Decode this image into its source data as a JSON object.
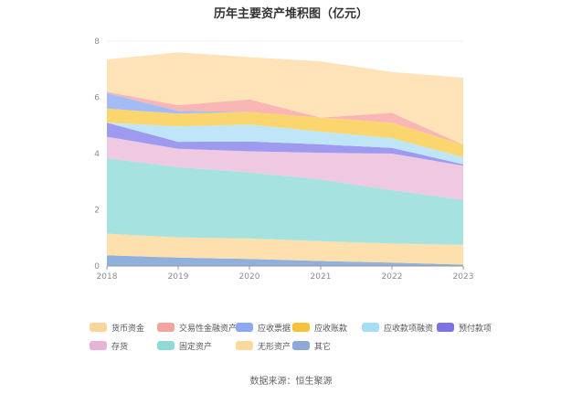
{
  "chart_data": {
    "type": "area",
    "stacked": true,
    "title": "历年主要资产堆积图（亿元）",
    "x": [
      "2018",
      "2019",
      "2020",
      "2021",
      "2022",
      "2023"
    ],
    "ylim": [
      0,
      8
    ],
    "yticks": [
      0,
      2,
      4,
      6,
      8
    ],
    "grid": true,
    "legend_position": "bottom",
    "series": [
      {
        "name": "其它",
        "color": "#8fb0dc",
        "values": [
          0.38,
          0.3,
          0.25,
          0.18,
          0.12,
          0.05
        ]
      },
      {
        "name": "无形资产",
        "color": "#fde0ad",
        "values": [
          0.77,
          0.72,
          0.73,
          0.7,
          0.68,
          0.7
        ]
      },
      {
        "name": "固定资产",
        "color": "#a6e3e0",
        "values": [
          2.68,
          2.5,
          2.35,
          2.2,
          1.9,
          1.6
        ]
      },
      {
        "name": "存货",
        "color": "#efc8e1",
        "values": [
          0.77,
          0.65,
          0.75,
          0.95,
          1.3,
          1.22
        ]
      },
      {
        "name": "预付款项",
        "color": "#9e9af0",
        "values": [
          0.5,
          0.25,
          0.35,
          0.3,
          0.2,
          0.05
        ]
      },
      {
        "name": "应收款项融资",
        "color": "#bfe6f8",
        "values": [
          0.0,
          0.55,
          0.6,
          0.45,
          0.35,
          0.25
        ]
      },
      {
        "name": "应收账款",
        "color": "#fbd56d",
        "values": [
          0.5,
          0.45,
          0.45,
          0.5,
          0.55,
          0.45
        ]
      },
      {
        "name": "应收票据",
        "color": "#a4bcf6",
        "values": [
          0.55,
          0.1,
          0.0,
          0.0,
          0.0,
          0.0
        ]
      },
      {
        "name": "交易性金融资产",
        "color": "#f8b7b4",
        "values": [
          0.05,
          0.2,
          0.45,
          0.0,
          0.35,
          0.0
        ]
      },
      {
        "name": "货币资金",
        "color": "#fde3b7",
        "values": [
          1.15,
          1.88,
          1.5,
          2.0,
          1.45,
          2.38
        ]
      }
    ]
  },
  "legend_order": [
    {
      "name": "货币资金",
      "color": "#fbd59c"
    },
    {
      "name": "交易性金融资产",
      "color": "#f3a49c"
    },
    {
      "name": "应收票据",
      "color": "#8ea9f4"
    },
    {
      "name": "应收账款",
      "color": "#f7c23a"
    },
    {
      "name": "应收款项融资",
      "color": "#a7def7"
    },
    {
      "name": "预付款项",
      "color": "#7b72e8"
    },
    {
      "name": "存货",
      "color": "#e9b2d7"
    },
    {
      "name": "固定资产",
      "color": "#8fdad6"
    },
    {
      "name": "无形资产",
      "color": "#fcd89a"
    },
    {
      "name": "其它",
      "color": "#8ea9d6"
    }
  ],
  "source": "数据来源：恒生聚源"
}
